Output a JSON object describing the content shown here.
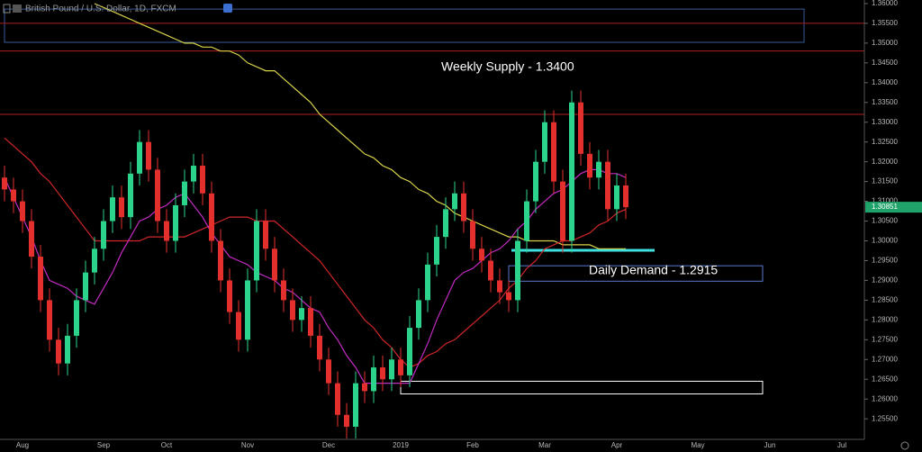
{
  "chart_data": {
    "type": "candlestick",
    "title": "British Pound / U.S. Dollar, 1D, FXCM",
    "categories": [
      null,
      null,
      "Aug",
      null,
      null,
      null,
      null,
      null,
      null,
      null,
      null,
      "Sep",
      null,
      null,
      null,
      null,
      null,
      null,
      "Oct",
      null,
      null,
      null,
      null,
      null,
      null,
      null,
      null,
      "Nov",
      null,
      null,
      null,
      null,
      null,
      null,
      null,
      null,
      "Dec",
      null,
      null,
      null,
      null,
      null,
      null,
      null,
      "2019",
      null,
      null,
      null,
      null,
      null,
      null,
      null,
      "Feb",
      null,
      null,
      null,
      null,
      null,
      null,
      null,
      "Mar",
      null,
      null,
      null,
      null,
      null,
      null,
      null,
      "Apr",
      null,
      null,
      null,
      null,
      null,
      null,
      null,
      null,
      "May",
      null,
      null,
      null,
      null,
      null,
      null,
      null,
      "Jun",
      null,
      null,
      null,
      null,
      null,
      null,
      null,
      "Jul",
      null,
      null
    ],
    "open": [
      1.316,
      1.313,
      1.31,
      1.305,
      1.296,
      1.285,
      1.275,
      1.269,
      1.276,
      1.285,
      1.292,
      1.298,
      1.305,
      1.311,
      1.306,
      1.317,
      1.325,
      1.318,
      1.305,
      1.3,
      1.309,
      1.315,
      1.319,
      1.312,
      1.3,
      1.29,
      1.282,
      1.275,
      1.29,
      1.305,
      1.298,
      1.29,
      1.285,
      1.28,
      1.283,
      1.276,
      1.27,
      1.264,
      1.256,
      1.253,
      1.264,
      1.262,
      1.268,
      1.265,
      1.27,
      1.266,
      1.278,
      1.285,
      1.294,
      1.301,
      1.308,
      1.312,
      1.305,
      1.298,
      1.295,
      1.29,
      1.287,
      1.285,
      1.3,
      1.31,
      1.32,
      1.33,
      1.315,
      1.3,
      1.335,
      1.322,
      1.316,
      1.32,
      1.308,
      1.314,
      null,
      null,
      null,
      null,
      null,
      null,
      null,
      null,
      null,
      null,
      null,
      null,
      null,
      null,
      null,
      null,
      null,
      null,
      null,
      null,
      null,
      null,
      null,
      null,
      null,
      null
    ],
    "high": [
      1.319,
      1.316,
      1.313,
      1.308,
      1.299,
      1.288,
      1.278,
      1.279,
      1.288,
      1.295,
      1.301,
      1.308,
      1.314,
      1.314,
      1.32,
      1.328,
      1.328,
      1.321,
      1.308,
      1.312,
      1.318,
      1.322,
      1.322,
      1.315,
      1.303,
      1.293,
      1.285,
      1.293,
      1.308,
      1.308,
      1.301,
      1.293,
      1.288,
      1.286,
      1.286,
      1.279,
      1.273,
      1.267,
      1.259,
      1.267,
      1.267,
      1.271,
      1.271,
      1.273,
      1.273,
      1.281,
      1.288,
      1.297,
      1.304,
      1.311,
      1.315,
      1.315,
      1.308,
      1.301,
      1.298,
      1.293,
      1.29,
      1.303,
      1.313,
      1.323,
      1.333,
      1.333,
      1.318,
      1.338,
      1.338,
      1.325,
      1.323,
      1.323,
      1.317,
      1.317,
      null,
      null,
      null,
      null,
      null,
      null,
      null,
      null,
      null,
      null,
      null,
      null,
      null,
      null,
      null,
      null,
      null,
      null,
      null,
      null,
      null,
      null,
      null,
      null,
      null,
      null
    ],
    "low": [
      1.31,
      1.307,
      1.302,
      1.293,
      1.282,
      1.272,
      1.266,
      1.266,
      1.273,
      1.282,
      1.289,
      1.295,
      1.302,
      1.303,
      1.303,
      1.314,
      1.315,
      1.302,
      1.297,
      1.297,
      1.306,
      1.312,
      1.309,
      1.297,
      1.287,
      1.279,
      1.272,
      1.272,
      1.287,
      1.295,
      1.287,
      1.282,
      1.277,
      1.277,
      1.273,
      1.267,
      1.261,
      1.253,
      1.25,
      1.25,
      1.259,
      1.259,
      1.262,
      1.262,
      1.263,
      1.263,
      1.275,
      1.282,
      1.291,
      1.298,
      1.305,
      1.302,
      1.295,
      1.292,
      1.287,
      1.284,
      1.282,
      1.282,
      1.297,
      1.307,
      1.317,
      1.312,
      1.297,
      1.297,
      1.319,
      1.313,
      1.313,
      1.305,
      1.305,
      1.3055,
      null,
      null,
      null,
      null,
      null,
      null,
      null,
      null,
      null,
      null,
      null,
      null,
      null,
      null,
      null,
      null,
      null,
      null,
      null,
      null,
      null,
      null,
      null,
      null,
      null,
      null
    ],
    "close": [
      1.313,
      1.31,
      1.305,
      1.296,
      1.285,
      1.275,
      1.269,
      1.276,
      1.285,
      1.292,
      1.298,
      1.305,
      1.311,
      1.306,
      1.317,
      1.325,
      1.318,
      1.305,
      1.3,
      1.309,
      1.315,
      1.319,
      1.312,
      1.3,
      1.29,
      1.282,
      1.275,
      1.29,
      1.305,
      1.298,
      1.29,
      1.285,
      1.28,
      1.283,
      1.276,
      1.27,
      1.264,
      1.256,
      1.253,
      1.264,
      1.262,
      1.268,
      1.265,
      1.27,
      1.266,
      1.278,
      1.285,
      1.294,
      1.301,
      1.308,
      1.312,
      1.305,
      1.298,
      1.295,
      1.29,
      1.287,
      1.285,
      1.3,
      1.31,
      1.32,
      1.33,
      1.315,
      1.3,
      1.335,
      1.322,
      1.316,
      1.32,
      1.308,
      1.314,
      1.3085,
      null,
      null,
      null,
      null,
      null,
      null,
      null,
      null,
      null,
      null,
      null,
      null,
      null,
      null,
      null,
      null,
      null,
      null,
      null,
      null,
      null,
      null,
      null,
      null,
      null,
      null
    ],
    "up_color": "#2bd48a",
    "down_color": "#e3302c",
    "overlays": [
      {
        "color": "#d8d24a",
        "values": [
          null,
          null,
          null,
          null,
          null,
          null,
          null,
          null,
          null,
          null,
          1.36,
          1.359,
          1.358,
          1.357,
          1.356,
          1.355,
          1.354,
          1.353,
          1.352,
          1.351,
          1.35,
          1.35,
          1.349,
          1.349,
          1.348,
          1.348,
          1.347,
          1.345,
          1.344,
          1.343,
          1.343,
          1.341,
          1.339,
          1.337,
          1.335,
          1.332,
          1.33,
          1.328,
          1.326,
          1.324,
          1.322,
          1.321,
          1.319,
          1.318,
          1.316,
          1.315,
          1.313,
          1.312,
          1.31,
          1.309,
          1.307,
          1.306,
          1.305,
          1.304,
          1.303,
          1.302,
          1.301,
          1.301,
          1.3,
          1.3,
          1.3,
          1.3,
          1.299,
          1.299,
          1.299,
          1.299,
          1.298,
          1.298,
          1.298,
          1.298,
          null,
          null,
          null,
          null,
          null,
          null,
          null,
          null,
          null,
          null,
          null,
          null,
          null,
          null,
          null,
          null,
          null,
          null,
          null,
          null,
          null,
          null,
          null,
          null,
          null,
          null
        ]
      },
      {
        "color": "#d0262a",
        "values": [
          1.326,
          1.324,
          1.322,
          1.32,
          1.317,
          1.315,
          1.312,
          1.309,
          1.306,
          1.303,
          1.3,
          1.3,
          1.3,
          1.3,
          1.3,
          1.3,
          1.301,
          1.301,
          1.301,
          1.301,
          1.301,
          1.302,
          1.303,
          1.304,
          1.305,
          1.306,
          1.306,
          1.306,
          1.305,
          1.305,
          1.305,
          1.303,
          1.301,
          1.299,
          1.297,
          1.295,
          1.292,
          1.289,
          1.286,
          1.283,
          1.28,
          1.278,
          1.275,
          1.273,
          1.27,
          1.268,
          1.269,
          1.271,
          1.272,
          1.274,
          1.275,
          1.277,
          1.279,
          1.281,
          1.283,
          1.285,
          1.288,
          1.29,
          1.293,
          1.295,
          1.298,
          1.299,
          1.3,
          1.3,
          1.301,
          1.302,
          1.304,
          1.305,
          1.307,
          1.308,
          null,
          null,
          null,
          null,
          null,
          null,
          null,
          null,
          null,
          null,
          null,
          null,
          null,
          null,
          null,
          null,
          null,
          null,
          null,
          null,
          null,
          null,
          null,
          null,
          null,
          null
        ]
      },
      {
        "color": "#c22bc2",
        "values": [
          1.316,
          1.311,
          1.306,
          1.301,
          1.295,
          1.29,
          1.289,
          1.288,
          1.286,
          1.285,
          1.284,
          1.288,
          1.292,
          1.297,
          1.301,
          1.305,
          1.306,
          1.308,
          1.309,
          1.311,
          1.312,
          1.309,
          1.306,
          1.302,
          1.299,
          1.296,
          1.295,
          1.294,
          1.292,
          1.291,
          1.29,
          1.288,
          1.287,
          1.285,
          1.283,
          1.282,
          1.278,
          1.275,
          1.271,
          1.268,
          1.264,
          1.264,
          1.264,
          1.264,
          1.264,
          1.264,
          1.269,
          1.274,
          1.28,
          1.285,
          1.29,
          1.292,
          1.293,
          1.295,
          1.297,
          1.298,
          1.3,
          1.303,
          1.305,
          1.308,
          1.31,
          1.312,
          1.313,
          1.315,
          1.317,
          1.318,
          1.318,
          1.317,
          1.317,
          1.316,
          null,
          null,
          null,
          null,
          null,
          null,
          null,
          null,
          null,
          null,
          null,
          null,
          null,
          null,
          null,
          null,
          null,
          null,
          null,
          null,
          null,
          null,
          null,
          null,
          null,
          null
        ]
      }
    ],
    "levels": [
      {
        "value": 1.355,
        "color": "#b02020"
      },
      {
        "value": 1.348,
        "color": "#b02020"
      },
      {
        "value": 1.332,
        "color": "#b02020"
      },
      {
        "value": 1.2976,
        "color": "#3ee0e0"
      }
    ],
    "zones": [
      {
        "low": 1.3502,
        "high": 1.3586,
        "color": "#3a5a9a"
      },
      {
        "low": 1.2898,
        "high": 1.2937,
        "color": "#5a7ad0"
      },
      {
        "low": 1.2613,
        "high": 1.2645,
        "color": "#ffffff"
      }
    ],
    "annotations": [
      {
        "text": "Weekly Supply - 1.3400"
      },
      {
        "text": "Daily Demand - 1.2915"
      }
    ],
    "last_price": 1.30851,
    "ylim": [
      1.2498,
      1.3609
    ],
    "yticks": [
      {
        "value": 1.255,
        "label": "1.25500"
      },
      {
        "value": 1.26,
        "label": "1.26000"
      },
      {
        "value": 1.265,
        "label": "1.26500"
      },
      {
        "value": 1.27,
        "label": "1.27000"
      },
      {
        "value": 1.275,
        "label": "1.27500"
      },
      {
        "value": 1.28,
        "label": "1.28000"
      },
      {
        "value": 1.285,
        "label": "1.28500"
      },
      {
        "value": 1.29,
        "label": "1.29000"
      },
      {
        "value": 1.295,
        "label": "1.29500"
      },
      {
        "value": 1.3,
        "label": "1.30000"
      },
      {
        "value": 1.305,
        "label": "1.30500"
      },
      {
        "value": 1.31,
        "label": "1.31000"
      },
      {
        "value": 1.315,
        "label": "1.31500"
      },
      {
        "value": 1.32,
        "label": "1.32000"
      },
      {
        "value": 1.325,
        "label": "1.32500"
      },
      {
        "value": 1.33,
        "label": "1.33000"
      },
      {
        "value": 1.335,
        "label": "1.33500"
      },
      {
        "value": 1.34,
        "label": "1.34000"
      },
      {
        "value": 1.345,
        "label": "1.34500"
      },
      {
        "value": 1.35,
        "label": "1.35000"
      },
      {
        "value": 1.355,
        "label": "1.35500"
      },
      {
        "value": 1.36,
        "label": "1.36000"
      }
    ],
    "grid": false
  }
}
